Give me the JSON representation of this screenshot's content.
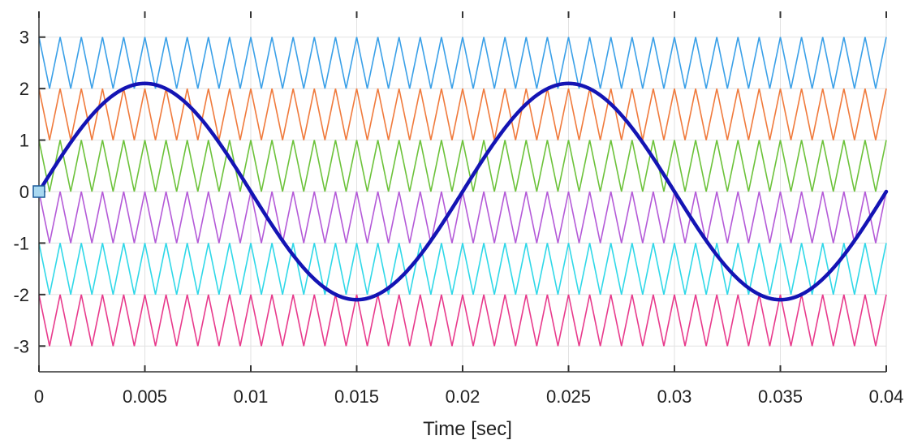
{
  "chart_data": {
    "type": "line",
    "title": "",
    "xlabel": "Time [sec]",
    "ylabel": "",
    "xlim": [
      0,
      0.04
    ],
    "ylim": [
      -3.5,
      3.5
    ],
    "grid": true,
    "x_ticks": [
      0,
      0.005,
      0.01,
      0.015,
      0.02,
      0.025,
      0.03,
      0.035,
      0.04
    ],
    "x_tick_labels": [
      "0",
      "0.005",
      "0.01",
      "0.015",
      "0.02",
      "0.025",
      "0.03",
      "0.035",
      "0.04"
    ],
    "y_ticks": [
      3,
      2,
      1,
      0,
      -1,
      -2,
      -3
    ],
    "y_tick_labels": [
      "3",
      "2",
      "1",
      "0",
      "-1",
      "-2",
      "-3"
    ],
    "carriers": {
      "shape": "triangular",
      "periods_in_window": 40,
      "bands": [
        {
          "low": 2,
          "high": 3,
          "color": "#3aa0e8"
        },
        {
          "low": 1,
          "high": 2,
          "color": "#f07a3c"
        },
        {
          "low": 0,
          "high": 1,
          "color": "#6cc23a"
        },
        {
          "low": -1,
          "high": 0,
          "color": "#b45ad8"
        },
        {
          "low": -2,
          "high": -1,
          "color": "#2fd8e8"
        },
        {
          "low": -3,
          "high": -2,
          "color": "#e83a8c"
        }
      ]
    },
    "reference": {
      "shape": "sine",
      "amplitude": 2.1,
      "frequency_hz": 50,
      "color": "#1414b4"
    },
    "start_marker": {
      "x": 0,
      "y": 0,
      "color": "#a8d8f0"
    }
  }
}
